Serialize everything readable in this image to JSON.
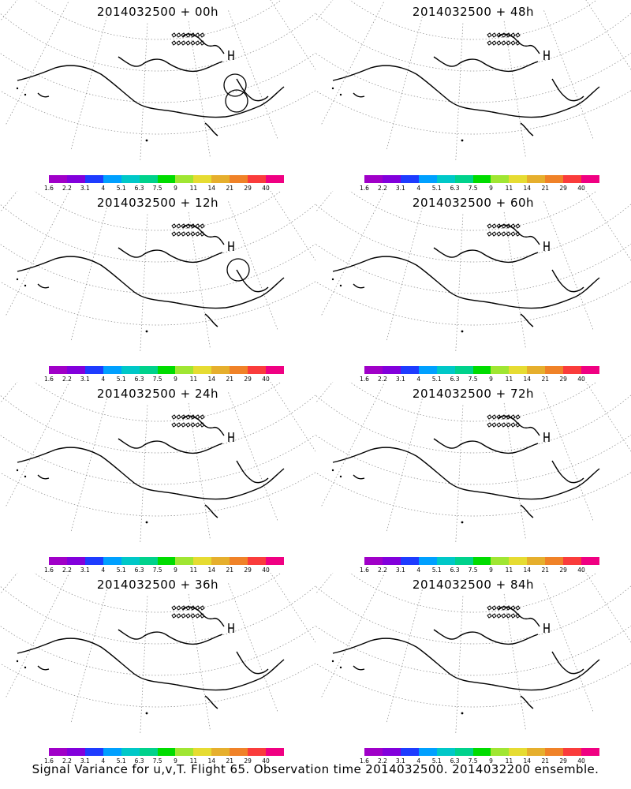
{
  "caption": "Signal Variance for u,v,T. Flight 65. Observation time 2014032500. 2014032200 ensemble.",
  "colorbar": {
    "colors": [
      "#a000c8",
      "#8200dc",
      "#1e3cff",
      "#00a0ff",
      "#00c8c8",
      "#00d28c",
      "#00dc00",
      "#a0e632",
      "#e6dc32",
      "#e6af2d",
      "#f08228",
      "#fa3c3c",
      "#f00082"
    ],
    "ticks": [
      "1.6",
      "2.2",
      "3.1",
      "4",
      "5.1",
      "6.3",
      "7.5",
      "9",
      "11",
      "14",
      "21",
      "29",
      "40"
    ]
  },
  "panels": [
    {
      "title": "2014032500 + 00h",
      "level": 0
    },
    {
      "title": "2014032500 + 12h",
      "level": 1
    },
    {
      "title": "2014032500 + 24h",
      "level": 2
    },
    {
      "title": "2014032500 + 36h",
      "level": 3
    },
    {
      "title": "2014032500 + 48h",
      "level": 4
    },
    {
      "title": "2014032500 + 60h",
      "level": 5
    },
    {
      "title": "2014032500 + 72h",
      "level": 6
    },
    {
      "title": "2014032500 + 84h",
      "level": 7
    }
  ]
}
